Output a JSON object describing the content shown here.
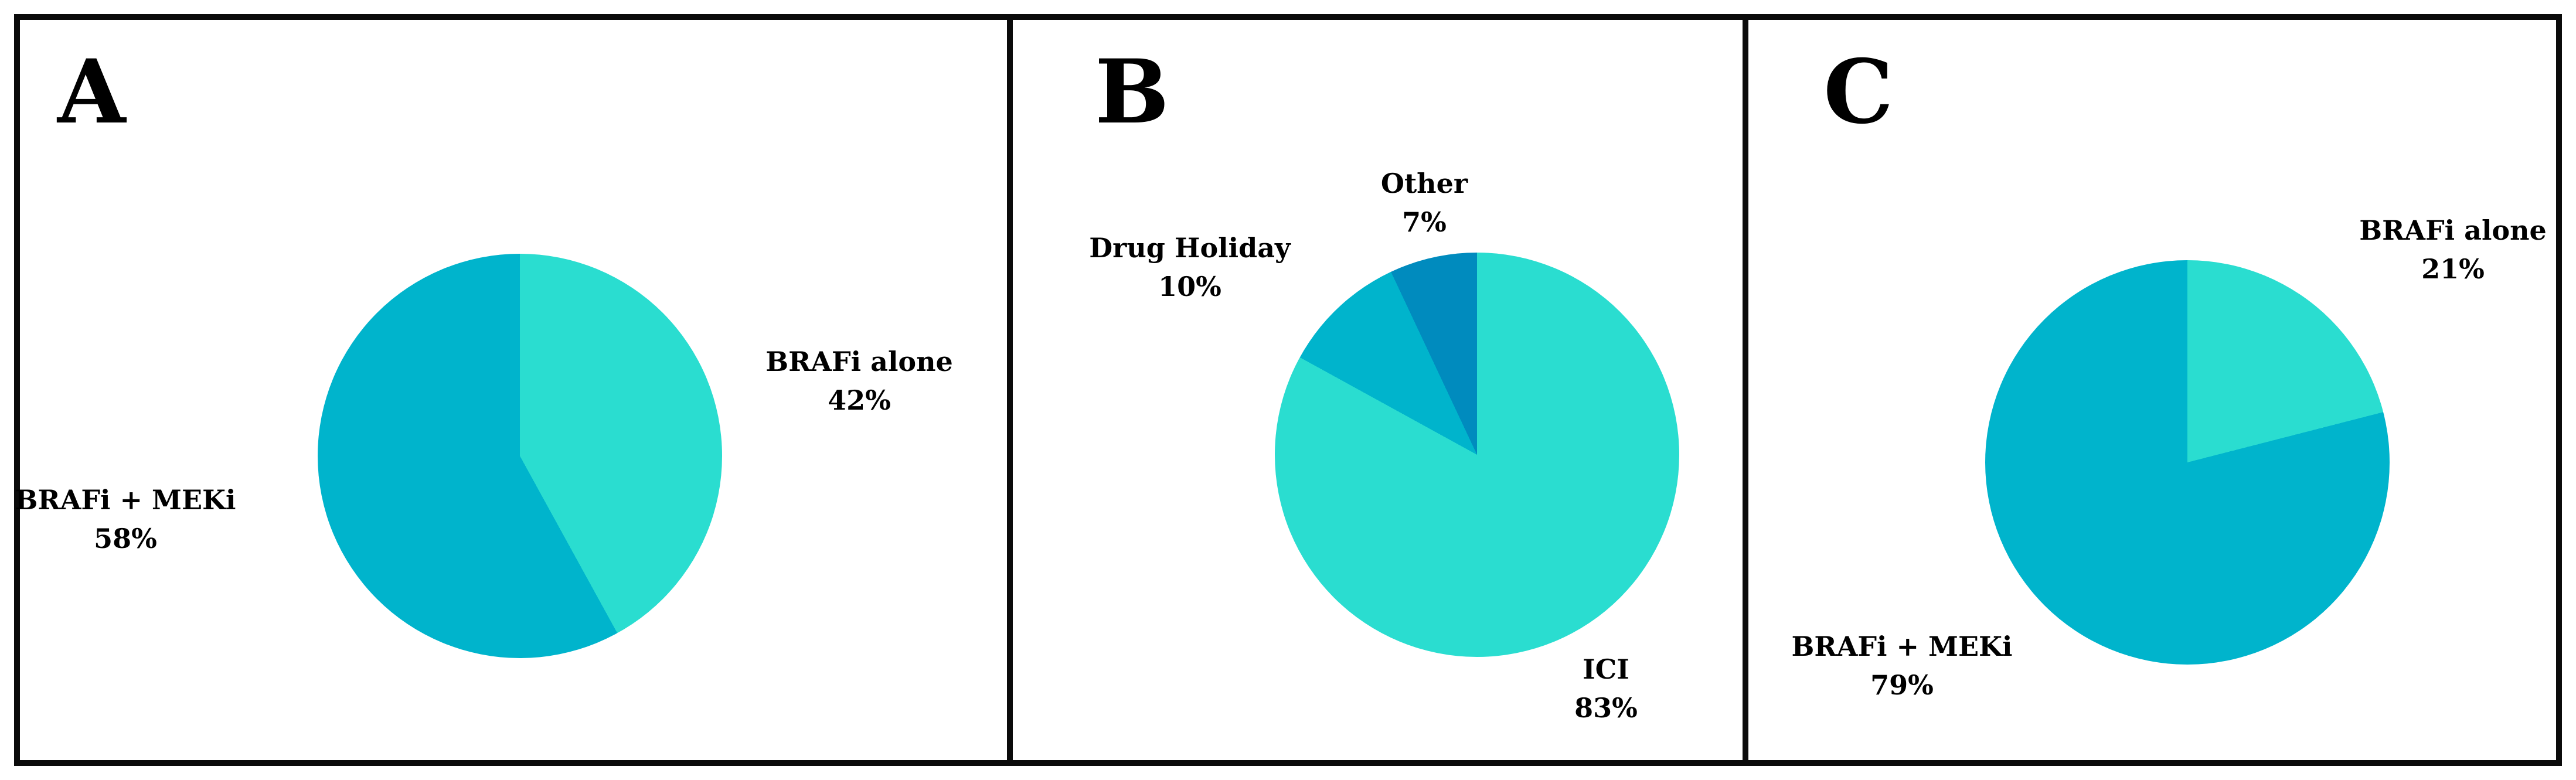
{
  "figure": {
    "background": "#ffffff",
    "border_color": "#0b0b0b",
    "panel_letters": [
      "A",
      "B",
      "C"
    ]
  },
  "colors": {
    "turquoise_light": "#2ADDD0",
    "teal": "#00B4CC",
    "blue": "#008BBE"
  },
  "chart_data": [
    {
      "type": "pie",
      "panel": "A",
      "labels": [
        "BRAFi alone",
        "BRAFi + MEKi"
      ],
      "values": [
        42,
        58
      ],
      "pct_labels": [
        "42%",
        "58%"
      ],
      "colors": [
        "#2ADDD0",
        "#00B4CC"
      ],
      "start": "12-oclock",
      "direction": "clockwise",
      "legend_position": "labels-outside"
    },
    {
      "type": "pie",
      "panel": "B",
      "labels": [
        "ICI",
        "Drug Holiday",
        "Other"
      ],
      "values": [
        83,
        10,
        7
      ],
      "pct_labels": [
        "83%",
        "10%",
        "7%"
      ],
      "colors": [
        "#2ADDD0",
        "#00B4CC",
        "#008BBE"
      ],
      "start": "12-oclock",
      "direction": "clockwise",
      "legend_position": "labels-outside"
    },
    {
      "type": "pie",
      "panel": "C",
      "labels": [
        "BRAFi alone",
        "BRAFi + MEKi"
      ],
      "values": [
        21,
        79
      ],
      "pct_labels": [
        "21%",
        "79%"
      ],
      "colors": [
        "#2ADDD0",
        "#00B4CC"
      ],
      "start": "12-oclock",
      "direction": "clockwise",
      "legend_position": "labels-outside"
    }
  ]
}
